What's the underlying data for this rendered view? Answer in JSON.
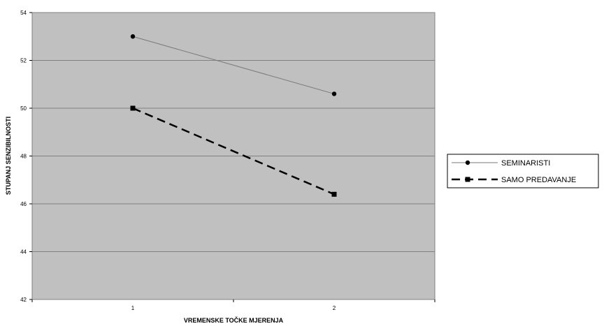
{
  "chart_data": {
    "type": "line",
    "x": [
      "1",
      "2"
    ],
    "series": [
      {
        "name": "SEMINARISTI",
        "values": [
          53.0,
          50.6
        ],
        "color": "#7a7a7a",
        "marker": "circle",
        "dash": "solid"
      },
      {
        "name": "SAMO PREDAVANJE",
        "values": [
          50.0,
          46.4
        ],
        "color": "#000000",
        "marker": "square",
        "dash": "dashed"
      }
    ],
    "title": "",
    "xlabel": "VREMENSKE TOČKE MJERENJA",
    "ylabel": "STUPANJ SENZIBILNOSTI",
    "ylim": [
      42,
      54
    ],
    "yticks": [
      42,
      44,
      46,
      48,
      50,
      52,
      54
    ],
    "grid": true,
    "legend": "right",
    "plot_background": "#c0c0c0"
  }
}
